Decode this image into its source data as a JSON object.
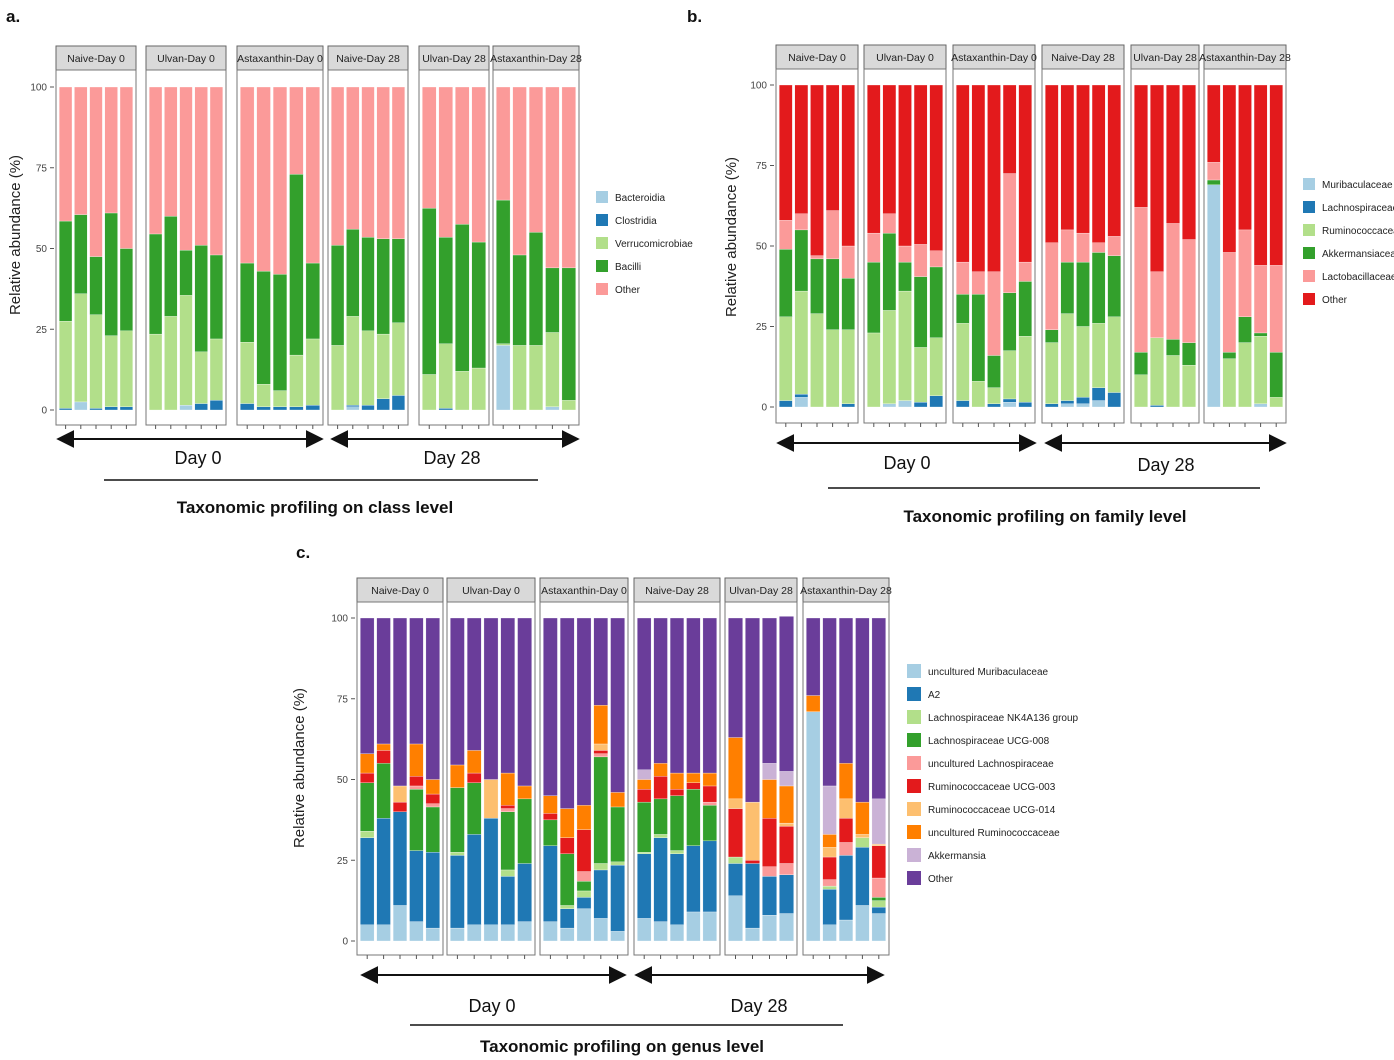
{
  "colors": {
    "strip_bg": "#d9d9d9",
    "strip_border": "#666666",
    "panel_border": "#777777",
    "arrow": "#111111"
  },
  "chart_data": [
    {
      "id": "a",
      "type": "bar",
      "stacked": true,
      "panel_label": "a.",
      "title": "Taxonomic profiling on class level",
      "ylabel": "Relative abundance (%)",
      "ylim": [
        0,
        100
      ],
      "yticks": [
        "0",
        "25",
        "50",
        "75",
        "100"
      ],
      "facets": [
        "Naive-Day 0",
        "Ulvan-Day 0",
        "Astaxanthin-Day 0",
        "Naive-Day 28",
        "Ulvan-Day 28",
        "Astaxanthin-Day 28"
      ],
      "periods": [
        "Day 0",
        "Day 28"
      ],
      "legend": [
        {
          "name": "Bacteroidia",
          "color": "#a6cee3"
        },
        {
          "name": "Clostridia",
          "color": "#1f78b4"
        },
        {
          "name": "Verrucomicrobiae",
          "color": "#b2df8a"
        },
        {
          "name": "Bacilli",
          "color": "#33a02c"
        },
        {
          "name": "Other",
          "color": "#fb9a99"
        }
      ],
      "samples": [
        [
          [
            0,
            0.5,
            27,
            31,
            41.5
          ],
          [
            2.5,
            0,
            33.5,
            24.5,
            39.5
          ],
          [
            0,
            0.5,
            29,
            18,
            52.5
          ],
          [
            0,
            1,
            22,
            38,
            39
          ],
          [
            0,
            1,
            23.5,
            25.5,
            50
          ]
        ],
        [
          [
            0,
            0,
            23.5,
            31,
            45.5
          ],
          [
            0,
            0,
            29,
            31,
            40
          ],
          [
            1.5,
            0,
            34,
            14,
            50.5
          ],
          [
            0,
            2,
            16,
            33,
            49
          ],
          [
            0,
            3,
            19,
            26,
            52
          ]
        ],
        [
          [
            0,
            2,
            19,
            24.5,
            54.5
          ],
          [
            0,
            1,
            7,
            35,
            57
          ],
          [
            0,
            1,
            5,
            36,
            58
          ],
          [
            0,
            1,
            16,
            56,
            27
          ],
          [
            0,
            1.5,
            20.5,
            23.5,
            54.5
          ]
        ],
        [
          [
            0,
            0,
            20,
            31,
            49
          ],
          [
            1,
            0.5,
            27.5,
            27,
            44
          ],
          [
            0,
            1.5,
            23,
            29,
            46.5
          ],
          [
            0,
            3.5,
            20,
            29.5,
            47
          ],
          [
            0,
            4.5,
            22.5,
            26,
            47
          ]
        ],
        [
          [
            0,
            0,
            11,
            51.5,
            37.5
          ],
          [
            0,
            0.5,
            20,
            33,
            46.5
          ],
          [
            0,
            0,
            12,
            45.5,
            42.5
          ],
          [
            0,
            0,
            13,
            39,
            48
          ]
        ],
        [
          [
            20,
            0,
            0.5,
            44.5,
            35
          ],
          [
            0,
            0,
            20,
            28,
            52
          ],
          [
            0,
            0,
            20,
            35,
            45
          ],
          [
            1,
            0,
            23,
            20,
            56
          ],
          [
            0,
            0,
            3,
            41,
            56
          ]
        ]
      ]
    },
    {
      "id": "b",
      "type": "bar",
      "stacked": true,
      "panel_label": "b.",
      "title": "Taxonomic profiling on family level",
      "ylabel": "Relative abundance (%)",
      "ylim": [
        0,
        100
      ],
      "yticks": [
        "0",
        "25",
        "50",
        "75",
        "100"
      ],
      "facets": [
        "Naive-Day 0",
        "Ulvan-Day 0",
        "Astaxanthin-Day 0",
        "Naive-Day 28",
        "Ulvan-Day 28",
        "Astaxanthin-Day 28"
      ],
      "periods": [
        "Day 0",
        "Day 28"
      ],
      "legend": [
        {
          "name": "Muribaculaceae",
          "color": "#a6cee3"
        },
        {
          "name": "Lachnospiraceae",
          "color": "#1f78b4"
        },
        {
          "name": "Ruminococcaceae",
          "color": "#b2df8a"
        },
        {
          "name": "Akkermansiaceae",
          "color": "#33a02c"
        },
        {
          "name": "Lactobacillaceae",
          "color": "#fb9a99"
        },
        {
          "name": "Other",
          "color": "#e31a1c"
        }
      ],
      "samples": [
        [
          [
            0,
            2,
            26,
            21,
            9,
            42
          ],
          [
            3,
            1,
            32,
            19,
            5,
            40
          ],
          [
            0,
            0,
            29,
            17,
            1,
            53
          ],
          [
            0,
            0,
            24,
            22,
            15,
            39
          ],
          [
            0,
            1,
            23,
            16,
            10,
            50
          ]
        ],
        [
          [
            0,
            0,
            23,
            22,
            9,
            46
          ],
          [
            1,
            0,
            29,
            24,
            6,
            40
          ],
          [
            2,
            0,
            34,
            9,
            5,
            50
          ],
          [
            0,
            1.5,
            17,
            22,
            10,
            49.5
          ],
          [
            0,
            3.5,
            18,
            22,
            5,
            51.5
          ]
        ],
        [
          [
            0,
            2,
            24,
            9,
            10,
            55
          ],
          [
            0,
            0,
            8,
            27,
            7,
            58
          ],
          [
            0,
            1,
            5,
            10,
            26,
            58
          ],
          [
            1.5,
            1,
            15,
            18,
            37,
            27.5
          ],
          [
            0,
            1.5,
            20.5,
            17,
            6,
            55
          ]
        ],
        [
          [
            0,
            1,
            19,
            4,
            27,
            49
          ],
          [
            1,
            1,
            27,
            16,
            10,
            45
          ],
          [
            1,
            2,
            22,
            20,
            9,
            46
          ],
          [
            2,
            4,
            20,
            22,
            3,
            49
          ],
          [
            0,
            4.5,
            23.5,
            19,
            6,
            47
          ]
        ],
        [
          [
            0,
            0,
            10,
            7,
            45,
            38
          ],
          [
            0,
            0.5,
            21,
            0,
            20.5,
            58
          ],
          [
            0,
            0,
            16,
            5,
            36,
            43
          ],
          [
            0,
            0,
            13,
            7,
            32,
            48
          ]
        ],
        [
          [
            69,
            0,
            0,
            1.5,
            5.5,
            24
          ],
          [
            0,
            0,
            15,
            2,
            31,
            52
          ],
          [
            0,
            0,
            20,
            8,
            27,
            45
          ],
          [
            1,
            0,
            21,
            1,
            21,
            56
          ],
          [
            0,
            0,
            3,
            14,
            27,
            56
          ]
        ]
      ]
    },
    {
      "id": "c",
      "type": "bar",
      "stacked": true,
      "panel_label": "c.",
      "title": "Taxonomic profiling on genus level",
      "ylabel": "Relative abundance (%)",
      "ylim": [
        0,
        100
      ],
      "yticks": [
        "0",
        "25",
        "50",
        "75",
        "100"
      ],
      "facets": [
        "Naive-Day 0",
        "Ulvan-Day 0",
        "Astaxanthin-Day 0",
        "Naive-Day 28",
        "Ulvan-Day 28",
        "Astaxanthin-Day 28"
      ],
      "periods": [
        "Day 0",
        "Day 28"
      ],
      "legend": [
        {
          "name": "uncultured Muribaculaceae",
          "color": "#a6cee3"
        },
        {
          "name": "A2",
          "color": "#1f78b4"
        },
        {
          "name": "Lachnospiraceae NK4A136 group",
          "color": "#b2df8a"
        },
        {
          "name": "Lachnospiraceae UCG-008",
          "color": "#33a02c"
        },
        {
          "name": "uncultured Lachnospiraceae",
          "color": "#fb9a99"
        },
        {
          "name": "Ruminococcaceae UCG-003",
          "color": "#e31a1c"
        },
        {
          "name": "Ruminococcaceae UCG-014",
          "color": "#fdbf6f"
        },
        {
          "name": "uncultured Ruminococcaceae",
          "color": "#ff7f00"
        },
        {
          "name": "Akkermansia",
          "color": "#cab2d6"
        },
        {
          "name": "Other",
          "color": "#6a3d9a"
        }
      ],
      "samples": [
        [
          [
            5,
            27,
            2,
            15,
            0,
            3,
            0,
            6,
            0,
            42
          ],
          [
            5,
            33,
            0,
            17,
            0,
            4,
            0,
            2,
            0,
            39
          ],
          [
            11,
            29,
            0,
            0,
            0,
            3,
            5,
            0,
            0,
            52
          ],
          [
            6,
            22,
            0,
            19,
            1,
            3,
            0,
            10,
            0,
            39
          ],
          [
            4,
            23.5,
            0,
            14,
            1,
            3,
            0,
            4.5,
            0,
            50
          ]
        ],
        [
          [
            4,
            22.5,
            1,
            20,
            0,
            0,
            0,
            7,
            0,
            45.5
          ],
          [
            5,
            28,
            0,
            16,
            0,
            3,
            0,
            7,
            0,
            41
          ],
          [
            5,
            33,
            0,
            0,
            0,
            0,
            12,
            0,
            0,
            50
          ],
          [
            5,
            15,
            2,
            18,
            1,
            1,
            0,
            10,
            0,
            48
          ],
          [
            6,
            18,
            0,
            20,
            0,
            0,
            0,
            4,
            0,
            52
          ]
        ],
        [
          [
            6,
            23.5,
            0,
            8,
            0,
            2,
            0,
            5.5,
            0,
            55
          ],
          [
            4,
            6,
            1,
            16,
            0,
            5,
            0,
            9,
            0,
            59
          ],
          [
            10,
            3.5,
            2,
            3,
            3,
            13,
            0,
            7.5,
            0,
            58
          ],
          [
            7,
            15,
            2,
            33,
            1,
            1,
            2,
            12,
            0,
            27
          ],
          [
            3,
            20.5,
            1,
            17,
            0,
            0,
            0,
            4.5,
            0,
            54
          ]
        ],
        [
          [
            7,
            20,
            0.5,
            15.5,
            0,
            4,
            0,
            3,
            3,
            47
          ],
          [
            6,
            26,
            1,
            11,
            0,
            7,
            0,
            4,
            0,
            45
          ],
          [
            5,
            22,
            1,
            17,
            0,
            2,
            0,
            5,
            0,
            48
          ],
          [
            9,
            20.5,
            0,
            17.5,
            0,
            2,
            0,
            3,
            0,
            48
          ],
          [
            9,
            22,
            0,
            11,
            1,
            5,
            0,
            4,
            0,
            48
          ]
        ],
        [
          [
            14,
            10,
            2,
            0,
            0,
            15,
            3,
            19,
            0,
            37
          ],
          [
            4,
            20,
            0,
            0,
            0,
            1,
            18,
            0,
            0,
            57
          ],
          [
            8,
            12,
            0,
            0,
            3,
            15,
            0,
            12,
            5,
            45
          ],
          [
            8.5,
            12,
            0,
            0,
            3.5,
            11.5,
            1,
            11.5,
            4.5,
            48
          ]
        ],
        [
          [
            71,
            0,
            0,
            0,
            0,
            0,
            0,
            5,
            0,
            24
          ],
          [
            5,
            11,
            1,
            0,
            2,
            7,
            3,
            4,
            15,
            52
          ],
          [
            6.5,
            20,
            0,
            0,
            4,
            7.5,
            6,
            11,
            0,
            45
          ],
          [
            11,
            18,
            3,
            0,
            0,
            0,
            1,
            10,
            0,
            57
          ],
          [
            8.5,
            2,
            2,
            1,
            6,
            10,
            0.5,
            0,
            14,
            56
          ]
        ]
      ]
    }
  ]
}
